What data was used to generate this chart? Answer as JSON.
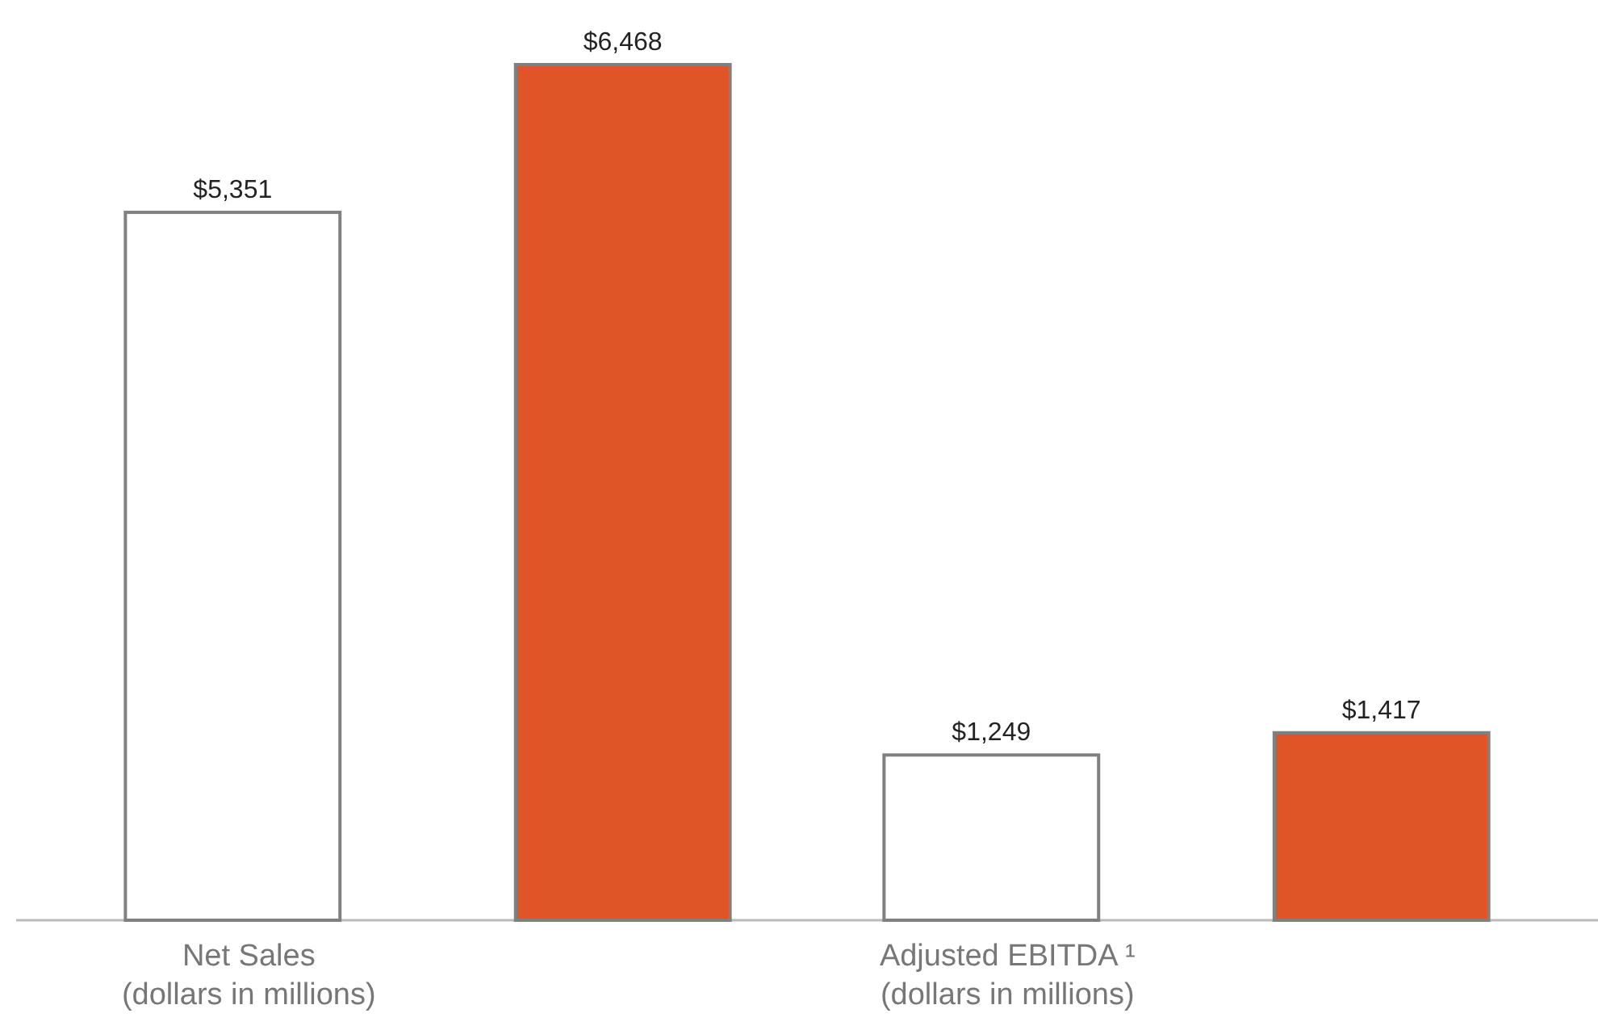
{
  "chart_data": {
    "type": "bar",
    "categories": [
      "Net Sales\n(dollars in millions)",
      "Adjusted EBITDA ¹\n(dollars in millions)"
    ],
    "series": [
      {
        "color": "#ffffff",
        "values": [
          5351,
          1249
        ],
        "value_labels": [
          "$5,351",
          "$1,249"
        ]
      },
      {
        "color": "#e05527",
        "values": [
          6468,
          1417
        ],
        "value_labels": [
          "$6,468",
          "$1,417"
        ]
      }
    ]
  }
}
